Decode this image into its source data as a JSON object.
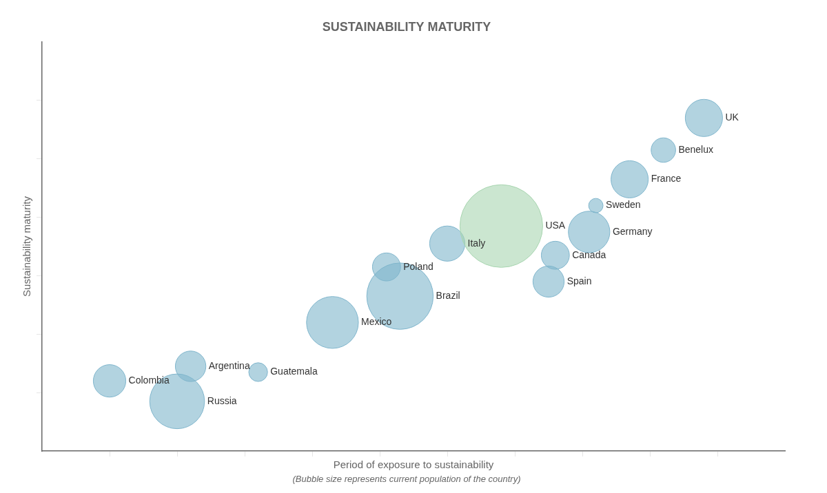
{
  "chart_data": {
    "type": "bubble",
    "title": "SUSTAINABILITY MATURITY",
    "subtitle": "(Bubble size represents current population of the country)",
    "xlabel": "Period of exposure to sustainability",
    "ylabel": "Sustainability maturity",
    "names": [
      "Colombia",
      "Russia",
      "Argentina",
      "Guatemala",
      "Mexico",
      "Brazil",
      "Poland",
      "Italy",
      "USA",
      "Spain",
      "Canada",
      "Germany",
      "Sweden",
      "France",
      "Benelux",
      "UK"
    ],
    "x": [
      1.0,
      2.0,
      2.2,
      3.2,
      4.3,
      5.3,
      5.1,
      6.0,
      6.8,
      7.5,
      7.6,
      8.1,
      8.2,
      8.7,
      9.2,
      9.8
    ],
    "values": [
      1.2,
      0.85,
      1.45,
      1.35,
      2.2,
      2.65,
      3.15,
      3.55,
      3.85,
      2.9,
      3.35,
      3.75,
      4.2,
      4.65,
      5.15,
      5.7
    ],
    "sizes": [
      51,
      145,
      45,
      17,
      130,
      213,
      38,
      60,
      330,
      47,
      38,
      83,
      10,
      67,
      29,
      67
    ],
    "colors": [
      "#7fb5cc",
      "#7fb5cc",
      "#7fb5cc",
      "#7fb5cc",
      "#7fb5cc",
      "#7fb5cc",
      "#7fb5cc",
      "#7fb5cc",
      "#a8d5b0",
      "#7fb5cc",
      "#7fb5cc",
      "#7fb5cc",
      "#7fb5cc",
      "#7fb5cc",
      "#7fb5cc",
      "#7fb5cc"
    ],
    "xlim": [
      0,
      11
    ],
    "ylim": [
      0,
      7
    ],
    "xticks": [
      1,
      2,
      3,
      4,
      5,
      6,
      7,
      8,
      9,
      10
    ],
    "yticks": [
      1,
      2,
      3,
      4,
      5,
      6
    ],
    "grid": false,
    "tick_labels": false
  }
}
